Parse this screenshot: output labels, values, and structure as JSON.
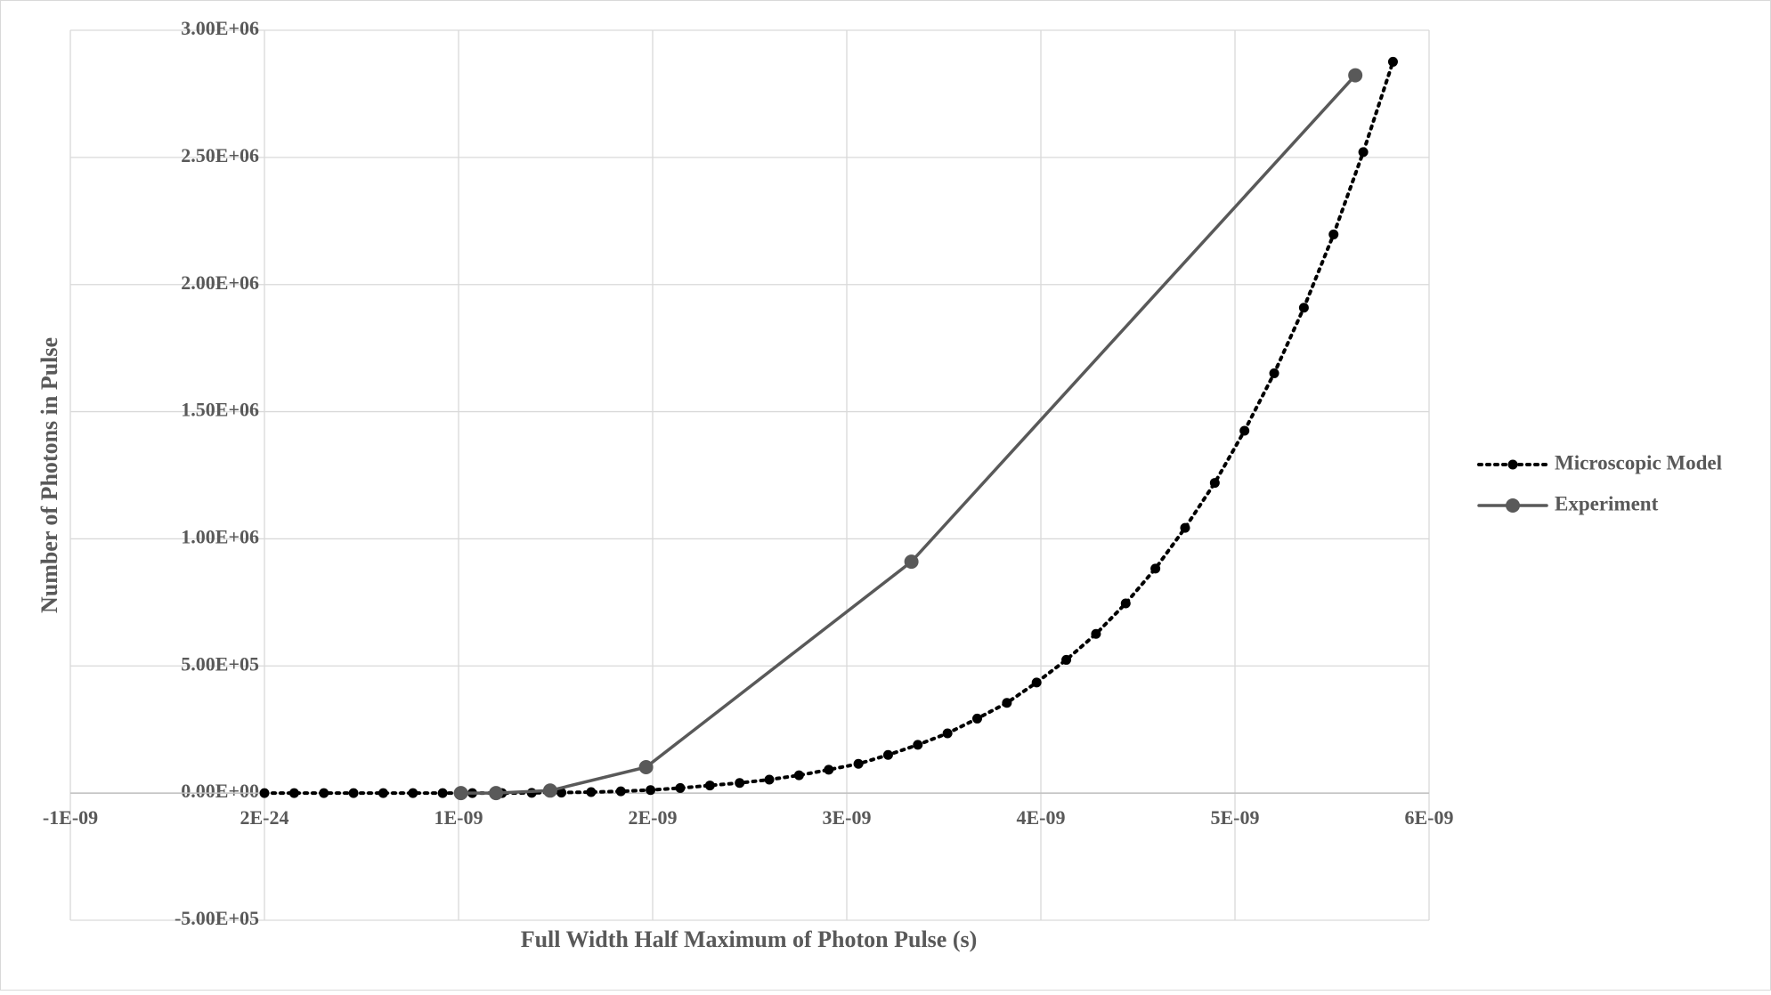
{
  "chart_data": {
    "type": "line",
    "x_label": "Full Width Half Maximum of Photon Pulse (s)",
    "y_label": "Number of Photons in Pulse",
    "xlim": [
      -1e-09,
      6e-09
    ],
    "ylim": [
      -500000,
      3000000
    ],
    "xticks": [
      {
        "value": -1e-09,
        "label": "-1E-09"
      },
      {
        "value": 2e-24,
        "label": "2E-24"
      },
      {
        "value": 1e-09,
        "label": "1E-09"
      },
      {
        "value": 2e-09,
        "label": "2E-09"
      },
      {
        "value": 3e-09,
        "label": "3E-09"
      },
      {
        "value": 4e-09,
        "label": "4E-09"
      },
      {
        "value": 5e-09,
        "label": "5E-09"
      },
      {
        "value": 6e-09,
        "label": "6E-09"
      }
    ],
    "yticks": [
      {
        "value": -500000,
        "label": "-5.00E+05"
      },
      {
        "value": 0,
        "label": "0.00E+00"
      },
      {
        "value": 500000,
        "label": "5.00E+05"
      },
      {
        "value": 1000000,
        "label": "1.00E+06"
      },
      {
        "value": 1500000,
        "label": "1.50E+06"
      },
      {
        "value": 2000000,
        "label": "2.00E+06"
      },
      {
        "value": 2500000,
        "label": "2.50E+06"
      },
      {
        "value": 3000000,
        "label": "3.00E+06"
      }
    ],
    "grid": true,
    "legend": "right",
    "series": [
      {
        "name": "Microscopic Model",
        "color": "#000000",
        "dash": "dotted",
        "x": [
          0,
          1.53e-10,
          3.06e-10,
          4.59e-10,
          6.12e-10,
          7.65e-10,
          9.18e-10,
          1.071e-09,
          1.224e-09,
          1.377e-09,
          1.53e-09,
          1.683e-09,
          1.836e-09,
          1.989e-09,
          2.142e-09,
          2.295e-09,
          2.448e-09,
          2.601e-09,
          2.754e-09,
          2.907e-09,
          3.06e-09,
          3.213e-09,
          3.366e-09,
          3.519e-09,
          3.672e-09,
          3.825e-09,
          3.978e-09,
          4.131e-09,
          4.284e-09,
          4.437e-09,
          4.59e-09,
          4.743e-09,
          4.896e-09,
          5.049e-09,
          5.202e-09,
          5.355e-09,
          5.508e-09,
          5.661e-09,
          5.814e-09
        ],
        "values": [
          0,
          0,
          0,
          0,
          0,
          0,
          0,
          0,
          0,
          1000,
          2000,
          4000,
          7000,
          12000,
          20000,
          30000,
          40000,
          53000,
          70000,
          92000,
          115000,
          150000,
          190000,
          235000,
          293000,
          355000,
          435000,
          524000,
          626000,
          746000,
          883000,
          1043000,
          1220000,
          1425000,
          1651000,
          1909000,
          2197000,
          2521000,
          2876000
        ]
      },
      {
        "name": "Experiment",
        "color": "#595959",
        "dash": "solid",
        "x": [
          1.012e-09,
          1.193e-09,
          1.472e-09,
          1.966e-09,
          3.333e-09,
          5.62e-09
        ],
        "values": [
          0,
          0,
          10000,
          102000,
          910000,
          2823000
        ]
      }
    ]
  }
}
